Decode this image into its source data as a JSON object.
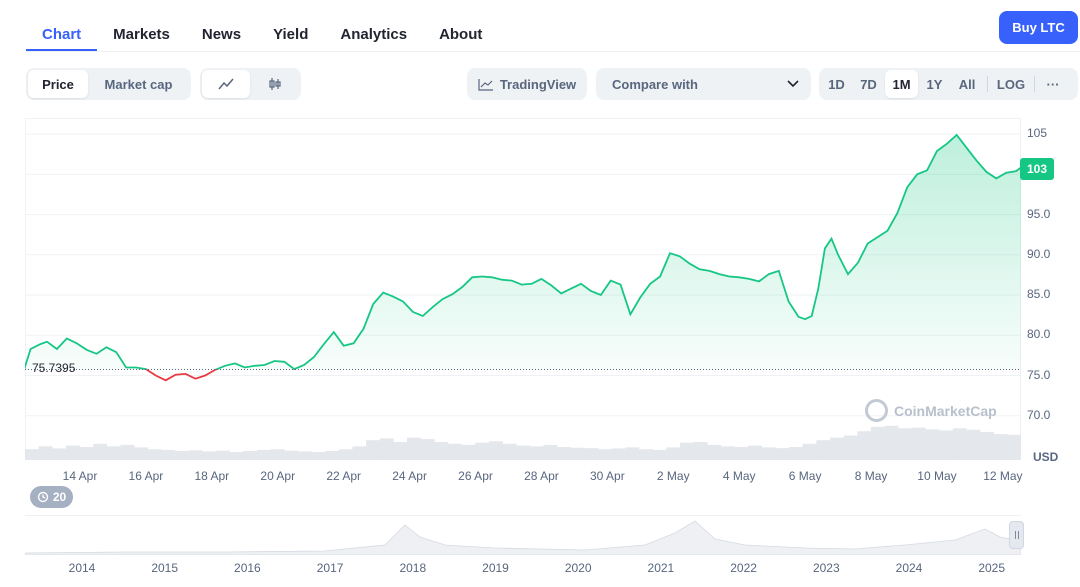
{
  "tabs": [
    {
      "label": "Chart"
    },
    {
      "label": "Markets"
    },
    {
      "label": "News"
    },
    {
      "label": "Yield"
    },
    {
      "label": "Analytics"
    },
    {
      "label": "About"
    }
  ],
  "buy_button": "Buy LTC",
  "toolbar": {
    "metric_options": [
      "Price",
      "Market cap"
    ],
    "selected_metric": "Price",
    "chart_types": [
      "line-chart-icon",
      "candlestick-icon"
    ],
    "selected_chart_type": "line-chart-icon",
    "tradingview_label": "TradingView",
    "compare_label": "Compare with",
    "ranges": [
      "1D",
      "7D",
      "1M",
      "1Y",
      "All"
    ],
    "selected_range": "1M",
    "log_label": "LOG",
    "more_label": "···"
  },
  "chart_data": {
    "type": "area",
    "y_ticks": [
      "105",
      "100",
      "95.0",
      "90.0",
      "85.0",
      "80.0",
      "75.0",
      "70.0"
    ],
    "ylim": [
      64.5,
      107
    ],
    "current_price": "103",
    "baseline_label": "75.7395",
    "baseline_value": 75.7395,
    "x_tick_labels": [
      "14 Apr",
      "16 Apr",
      "18 Apr",
      "20 Apr",
      "22 Apr",
      "24 Apr",
      "26 Apr",
      "28 Apr",
      "30 Apr",
      "2 May",
      "4 May",
      "6 May",
      "8 May",
      "10 May",
      "12 May"
    ],
    "currency_label": "USD",
    "watermark": "CoinMarketCap",
    "colors": {
      "up": "#16c784",
      "down": "#ea3943",
      "volume": "#e4e7ec"
    },
    "series": [
      {
        "x": [
          12.3,
          12.5,
          12.8,
          13.0,
          13.3,
          13.6,
          13.9,
          14.2,
          14.5,
          14.8,
          15.1,
          15.4,
          15.7,
          16.0,
          16.3,
          16.6,
          16.9,
          17.2,
          17.5,
          17.8,
          18.1,
          18.4,
          18.7,
          19.0,
          19.3,
          19.6,
          19.9,
          20.2,
          20.5,
          20.8,
          21.1,
          21.4,
          21.7,
          22.0,
          22.3,
          22.6,
          22.9,
          23.2,
          23.5,
          23.8,
          24.1,
          24.4,
          24.7,
          25.0,
          25.3,
          25.6,
          25.9,
          26.2,
          26.5,
          26.8,
          27.1,
          27.4,
          27.7,
          28.0,
          28.3,
          28.6,
          28.9,
          29.2,
          29.5,
          29.8,
          30.1,
          30.4,
          30.7,
          31.0,
          31.3,
          31.6,
          31.9,
          32.2,
          32.5,
          32.8,
          33.1,
          33.4,
          33.7,
          34.0,
          34.3,
          34.6,
          34.9,
          35.2,
          35.5,
          35.8,
          36.0,
          36.2,
          36.4,
          36.6,
          36.8,
          37.0,
          37.3,
          37.6,
          37.9,
          38.2,
          38.5,
          38.8,
          39.1,
          39.4,
          39.7,
          40.0,
          40.3,
          40.6,
          40.9,
          41.2,
          41.5,
          41.8,
          42.1,
          42.4,
          42.7,
          42.9,
          43.1,
          43.3,
          43.5,
          43.6
        ],
        "y": [
          75.7,
          78.3,
          78.9,
          79.2,
          78.3,
          79.6,
          79.0,
          78.2,
          77.7,
          78.5,
          77.9,
          76.0,
          76.0,
          75.8,
          75.0,
          74.4,
          75.1,
          75.2,
          74.6,
          75.0,
          75.7,
          76.2,
          76.5,
          76.0,
          76.2,
          76.3,
          76.8,
          76.7,
          75.8,
          76.3,
          77.3,
          78.9,
          80.4,
          78.7,
          79.0,
          80.8,
          83.9,
          85.3,
          84.8,
          84.2,
          82.9,
          82.4,
          83.5,
          84.5,
          85.1,
          86.0,
          87.2,
          87.3,
          87.2,
          86.9,
          86.8,
          86.3,
          86.4,
          87.0,
          86.2,
          85.2,
          85.8,
          86.4,
          85.5,
          85.0,
          86.8,
          86.3,
          82.6,
          84.7,
          86.4,
          87.3,
          90.2,
          89.8,
          88.9,
          88.2,
          88.0,
          87.6,
          87.3,
          87.2,
          87.0,
          86.7,
          87.6,
          88.0,
          84.2,
          82.3,
          82.0,
          82.4,
          85.8,
          90.8,
          92.0,
          90.0,
          87.6,
          89.0,
          91.4,
          92.2,
          93.0,
          95.2,
          98.4,
          100.0,
          100.5,
          102.9,
          103.8,
          104.9,
          103.3,
          101.7,
          100.3,
          99.5,
          100.2,
          100.4,
          101.3,
          101.8,
          101.1,
          102.3,
          102.6,
          103.0
        ]
      }
    ],
    "volume_profile": [
      0.3,
      0.38,
      0.32,
      0.4,
      0.36,
      0.45,
      0.38,
      0.42,
      0.35,
      0.3,
      0.28,
      0.25,
      0.27,
      0.24,
      0.26,
      0.22,
      0.25,
      0.28,
      0.3,
      0.26,
      0.24,
      0.22,
      0.25,
      0.3,
      0.38,
      0.55,
      0.6,
      0.5,
      0.62,
      0.58,
      0.5,
      0.45,
      0.42,
      0.48,
      0.52,
      0.45,
      0.4,
      0.38,
      0.42,
      0.36,
      0.34,
      0.33,
      0.3,
      0.32,
      0.35,
      0.3,
      0.28,
      0.35,
      0.48,
      0.5,
      0.42,
      0.38,
      0.36,
      0.4,
      0.35,
      0.33,
      0.36,
      0.45,
      0.55,
      0.62,
      0.68,
      0.8,
      0.92,
      0.95,
      0.88,
      0.9,
      0.85,
      0.82,
      0.88,
      0.84,
      0.78,
      0.72,
      0.7
    ],
    "navigator": {
      "year_labels": [
        "2014",
        "2015",
        "2016",
        "2017",
        "2018",
        "2019",
        "2020",
        "2021",
        "2022",
        "2023",
        "2024",
        "2025"
      ],
      "history_button": "20"
    }
  }
}
